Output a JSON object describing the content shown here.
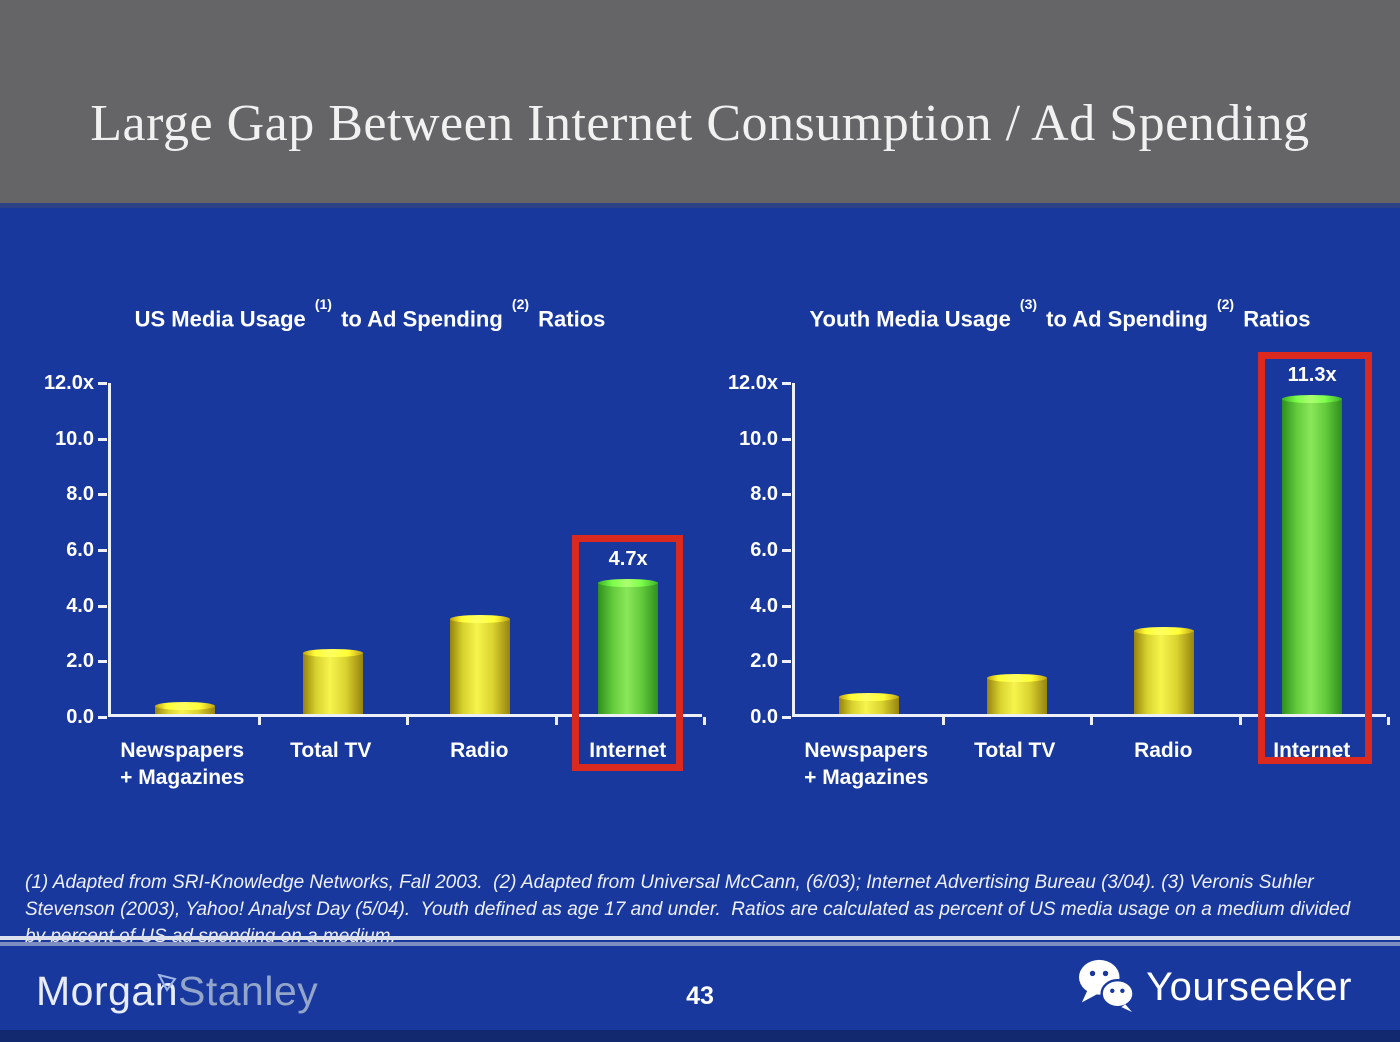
{
  "slide": {
    "title": "Large Gap Between Internet Consumption / Ad Spending",
    "page_number": "43",
    "footnote": "(1) Adapted from SRI-Knowledge Networks, Fall 2003.  (2) Adapted from Universal McCann, (6/03); Internet Advertising Bureau (3/04). (3) Veronis Suhler\nStevenson (2003), Yahoo! Analyst Day (5/04).  Youth defined as age 17 and under.  Ratios are calculated as percent of US media usage on a medium divided\nby percent of US ad spending on a medium.",
    "brand": {
      "word1": "Morgan",
      "word2": "Stanley",
      "icon": "morgan-stanley-flag-icon"
    },
    "watermark": {
      "label": "Yourseeker",
      "icon": "wechat-icon"
    },
    "colors": {
      "background_blue": "#18389e",
      "header_gray": "#656567",
      "bar_yellow": "#f2ee43",
      "bar_green": "#6fd344",
      "highlight_red": "#da2a20",
      "text_white": "#ffffff"
    }
  },
  "chart_data": [
    {
      "type": "bar",
      "title": "US Media Usage (1) to Ad Spending (2) Ratios",
      "title_segments": [
        {
          "text": "US Media Usage "
        },
        {
          "sup": "(1)"
        },
        {
          "text": " to Ad Spending "
        },
        {
          "sup": "(2)"
        },
        {
          "text": " Ratios"
        }
      ],
      "categories": [
        "Newspapers\n+ Magazines",
        "Total TV",
        "Radio",
        "Internet"
      ],
      "values": [
        0.3,
        2.2,
        3.4,
        4.7
      ],
      "bar_colors": [
        "yellow",
        "yellow",
        "yellow",
        "green"
      ],
      "data_labels": [
        null,
        null,
        null,
        "4.7x"
      ],
      "highlight_index": 3,
      "y_ticks": [
        "12.0x",
        "10.0",
        "8.0",
        "6.0",
        "4.0",
        "2.0",
        "0.0"
      ],
      "ylim": [
        0,
        12
      ],
      "xlabel": "",
      "ylabel": "",
      "grid": false,
      "legend": null
    },
    {
      "type": "bar",
      "title": "Youth Media Usage (3) to Ad Spending (2) Ratios",
      "title_segments": [
        {
          "text": "Youth Media Usage "
        },
        {
          "sup": "(3)"
        },
        {
          "text": " to Ad Spending "
        },
        {
          "sup": "(2)"
        },
        {
          "text": " Ratios"
        }
      ],
      "categories": [
        "Newspapers\n+ Magazines",
        "Total TV",
        "Radio",
        "Internet"
      ],
      "values": [
        0.6,
        1.3,
        3.0,
        11.3
      ],
      "bar_colors": [
        "yellow",
        "yellow",
        "yellow",
        "green"
      ],
      "data_labels": [
        null,
        null,
        null,
        "11.3x"
      ],
      "highlight_index": 3,
      "y_ticks": [
        "12.0x",
        "10.0",
        "8.0",
        "6.0",
        "4.0",
        "2.0",
        "0.0"
      ],
      "ylim": [
        0,
        12
      ],
      "xlabel": "",
      "ylabel": "",
      "grid": false,
      "legend": null
    }
  ]
}
